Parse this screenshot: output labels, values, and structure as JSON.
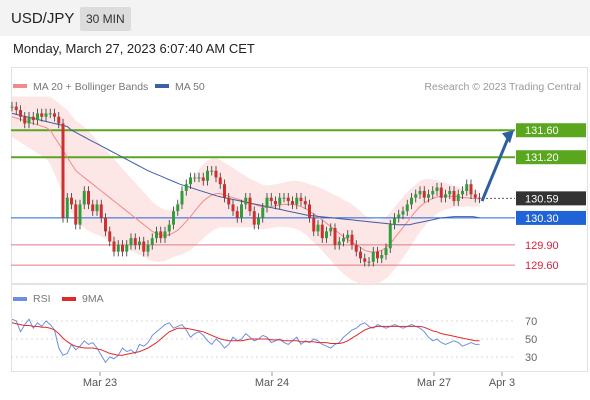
{
  "header": {
    "pair": "USD/JPY",
    "timeframe": "30 MIN"
  },
  "datetime": "Monday, March 27, 2023 6:07:40 AM CET",
  "legend": {
    "ma20": "MA 20 + Bollinger Bands",
    "ma50": "MA 50",
    "credit": "Research © 2023 Trading Central",
    "rsi": "RSI",
    "ma9": "9MA"
  },
  "colors": {
    "ma20": "#f28a8a",
    "band": "#fbe0e0",
    "ma50": "#3d5fa8",
    "green": "#5aa61e",
    "blue": "#1f63d6",
    "red": "#d9213a",
    "current": "#333333",
    "candle_up": "#2f9e3a",
    "candle_down": "#cf2f2f",
    "rsi": "#6d8fe0",
    "rsi_ma": "#e02a2a"
  },
  "chart_data": [
    {
      "type": "candlestick",
      "title": "USD/JPY 30 MIN",
      "x_labels": [
        "Mar 23",
        "Mar 24",
        "Mar 27",
        "Apr 3"
      ],
      "ylim": [
        129.35,
        131.9
      ],
      "levels": [
        {
          "value": 131.6,
          "label": "131.60",
          "kind": "resistance"
        },
        {
          "value": 131.2,
          "label": "131.20",
          "kind": "resistance"
        },
        {
          "value": 130.59,
          "label": "130.59",
          "kind": "current"
        },
        {
          "value": 130.3,
          "label": "130.30",
          "kind": "pivot"
        },
        {
          "value": 129.9,
          "label": "129.90",
          "kind": "support"
        },
        {
          "value": 129.6,
          "label": "129.60",
          "kind": "support"
        }
      ],
      "forecast": {
        "from": 130.55,
        "to": 131.6,
        "direction": "up"
      },
      "closes": [
        131.95,
        131.9,
        131.8,
        131.7,
        131.8,
        131.75,
        131.85,
        131.8,
        131.85,
        131.85,
        131.8,
        131.7,
        130.3,
        130.6,
        130.5,
        130.2,
        130.5,
        130.7,
        130.5,
        130.4,
        130.5,
        130.3,
        130.1,
        129.95,
        129.8,
        129.9,
        129.8,
        129.9,
        130.0,
        129.9,
        129.95,
        129.8,
        129.9,
        130.0,
        130.1,
        130.0,
        130.1,
        130.2,
        130.4,
        130.5,
        130.7,
        130.8,
        130.9,
        130.9,
        130.9,
        130.85,
        131.0,
        131.0,
        130.9,
        130.8,
        130.6,
        130.5,
        130.4,
        130.3,
        130.5,
        130.6,
        130.4,
        130.2,
        130.3,
        130.45,
        130.6,
        130.55,
        130.5,
        130.6,
        130.6,
        130.55,
        130.5,
        130.6,
        130.55,
        130.5,
        130.3,
        130.1,
        130.2,
        130.0,
        130.1,
        130.15,
        129.9,
        129.95,
        130.0,
        130.05,
        129.9,
        129.8,
        129.7,
        129.65,
        129.65,
        129.8,
        129.7,
        129.75,
        129.85,
        130.2,
        130.3,
        130.35,
        130.4,
        130.5,
        130.6,
        130.65,
        130.7,
        130.6,
        130.65,
        130.7,
        130.75,
        130.6,
        130.65,
        130.7,
        130.55,
        130.65,
        130.7,
        130.8,
        130.65,
        130.6,
        130.59
      ],
      "ma20": [
        131.8,
        131.78,
        131.76,
        131.74,
        131.72,
        131.7,
        131.68,
        131.66,
        131.64,
        131.6,
        131.5,
        131.4,
        131.3,
        131.2,
        131.1,
        131.0,
        130.95,
        130.9,
        130.85,
        130.8,
        130.75,
        130.7,
        130.65,
        130.6,
        130.55,
        130.5,
        130.45,
        130.4,
        130.35,
        130.3,
        130.25,
        130.2,
        130.15,
        130.1,
        130.07,
        130.05,
        130.04,
        130.05,
        130.08,
        130.12,
        130.18,
        130.25,
        130.32,
        130.4,
        130.48,
        130.55,
        130.6,
        130.64,
        130.66,
        130.66,
        130.64,
        130.62,
        130.6,
        130.58,
        130.56,
        130.54,
        130.52,
        130.5,
        130.48,
        130.46,
        130.46,
        130.47,
        130.48,
        130.49,
        130.5,
        130.5,
        130.5,
        130.49,
        130.47,
        130.44,
        130.4,
        130.36,
        130.32,
        130.27,
        130.22,
        130.17,
        130.12,
        130.07,
        130.02,
        129.98,
        129.94,
        129.9,
        129.86,
        129.82,
        129.8,
        129.79,
        129.8,
        129.82,
        129.86,
        129.92,
        130.0,
        130.08,
        130.16,
        130.24,
        130.32,
        130.4,
        130.47,
        130.52,
        130.56,
        130.59,
        130.61,
        130.62,
        130.62,
        130.62,
        130.62,
        130.61,
        130.6,
        130.6,
        130.59,
        130.59,
        130.58
      ],
      "band_width": [
        0.3,
        0.32,
        0.34,
        0.36,
        0.38,
        0.4,
        0.42,
        0.44,
        0.46,
        0.5,
        0.55,
        0.6,
        0.65,
        0.7,
        0.72,
        0.74,
        0.75,
        0.75,
        0.74,
        0.72,
        0.7,
        0.68,
        0.66,
        0.64,
        0.62,
        0.6,
        0.58,
        0.56,
        0.54,
        0.52,
        0.5,
        0.48,
        0.46,
        0.44,
        0.42,
        0.4,
        0.38,
        0.36,
        0.36,
        0.38,
        0.42,
        0.46,
        0.5,
        0.52,
        0.54,
        0.55,
        0.55,
        0.54,
        0.52,
        0.5,
        0.48,
        0.46,
        0.44,
        0.42,
        0.4,
        0.38,
        0.36,
        0.35,
        0.34,
        0.33,
        0.32,
        0.32,
        0.32,
        0.32,
        0.33,
        0.34,
        0.35,
        0.36,
        0.37,
        0.38,
        0.4,
        0.42,
        0.44,
        0.46,
        0.48,
        0.5,
        0.52,
        0.54,
        0.55,
        0.56,
        0.56,
        0.55,
        0.54,
        0.52,
        0.5,
        0.48,
        0.47,
        0.46,
        0.46,
        0.46,
        0.46,
        0.46,
        0.45,
        0.44,
        0.42,
        0.4,
        0.38,
        0.35,
        0.32,
        0.28,
        0.25,
        0.22,
        0.2,
        0.18,
        0.16,
        0.15,
        0.14,
        0.13,
        0.12,
        0.12,
        0.12
      ],
      "ma50": [
        131.6,
        131.55,
        131.5,
        131.45,
        131.4,
        131.35,
        131.3,
        131.25,
        131.2,
        131.15,
        131.1,
        131.05,
        131.0,
        130.96,
        130.92,
        130.88,
        130.84,
        130.8,
        130.77,
        130.74,
        130.71,
        130.68,
        130.65,
        130.62,
        130.6,
        130.58,
        130.56,
        130.54,
        130.52,
        130.5,
        130.48,
        130.46,
        130.44,
        130.42,
        130.4,
        130.38,
        130.36,
        130.34,
        130.33,
        130.32,
        130.31,
        130.3,
        130.29,
        130.28,
        130.27,
        130.26,
        130.25,
        130.24,
        130.23,
        130.22,
        130.21,
        130.2,
        130.2,
        130.2,
        130.22,
        130.24,
        130.26,
        130.28,
        130.3,
        130.31,
        130.32,
        130.32,
        130.32,
        130.32,
        130.3
      ]
    },
    {
      "type": "line",
      "title": "RSI",
      "ylim": [
        20,
        80
      ],
      "y_ticks": [
        70,
        50,
        30
      ],
      "series": [
        {
          "name": "RSI",
          "values": [
            72,
            70,
            58,
            66,
            72,
            62,
            68,
            64,
            70,
            66,
            60,
            40,
            32,
            34,
            44,
            38,
            42,
            48,
            44,
            46,
            40,
            32,
            24,
            30,
            28,
            32,
            40,
            36,
            38,
            34,
            44,
            42,
            46,
            54,
            58,
            62,
            66,
            68,
            62,
            64,
            66,
            60,
            52,
            56,
            58,
            54,
            48,
            44,
            50,
            46,
            40,
            44,
            52,
            48,
            50,
            56,
            52,
            48,
            50,
            54,
            52,
            46,
            48,
            50,
            46,
            44,
            48,
            52,
            44,
            48,
            46,
            50,
            48,
            44,
            42,
            40,
            44,
            46,
            52,
            56,
            60,
            62,
            66,
            68,
            64,
            62,
            66,
            64,
            62,
            64,
            66,
            64,
            62,
            64,
            66,
            64,
            62,
            58,
            52,
            48,
            50,
            46,
            44,
            46,
            48,
            46,
            42,
            44,
            46,
            44,
            44
          ]
        },
        {
          "name": "9MA",
          "values": [
            68,
            67,
            66,
            65,
            65,
            64,
            64,
            63,
            63,
            62,
            60,
            56,
            51,
            47,
            44,
            42,
            41,
            40,
            40,
            40,
            39,
            38,
            36,
            34,
            33,
            32,
            32,
            33,
            34,
            35,
            36,
            38,
            40,
            43,
            46,
            50,
            54,
            58,
            60,
            62,
            62,
            62,
            61,
            60,
            59,
            58,
            56,
            54,
            52,
            50,
            49,
            48,
            48,
            48,
            48,
            49,
            50,
            50,
            50,
            50,
            50,
            49,
            49,
            49,
            48,
            48,
            48,
            48,
            47,
            47,
            47,
            47,
            46,
            46,
            46,
            45,
            45,
            45,
            46,
            48,
            51,
            54,
            57,
            60,
            62,
            63,
            64,
            64,
            64,
            64,
            64,
            64,
            64,
            64,
            64,
            64,
            64,
            63,
            61,
            59,
            58,
            56,
            55,
            54,
            53,
            52,
            51,
            50,
            49,
            48,
            48
          ]
        }
      ]
    }
  ]
}
